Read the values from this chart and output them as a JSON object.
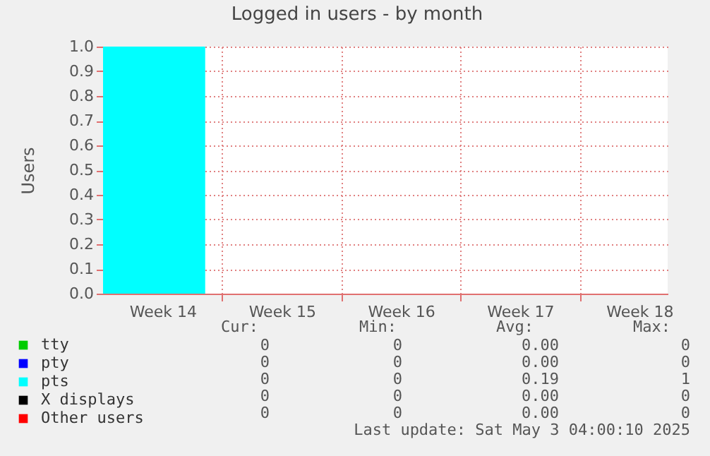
{
  "chart_data": {
    "type": "area",
    "title": "Logged in users - by month",
    "ylabel": "Users",
    "x": [
      "2025-03-31",
      "2025-04-06",
      "2025-04-06",
      "2025-05-03T04:00"
    ],
    "series": [
      {
        "name": "tty",
        "color": "#00cc00",
        "values": [
          null,
          null,
          null,
          null
        ]
      },
      {
        "name": "pty",
        "color": "#0000ff",
        "values": [
          null,
          null,
          null,
          null
        ]
      },
      {
        "name": "pts",
        "color": "#00ffff",
        "values": [
          1,
          1,
          0,
          0
        ]
      },
      {
        "name": "X displays",
        "color": "#000000",
        "values": [
          null,
          null,
          null,
          null
        ]
      },
      {
        "name": "Other users",
        "color": "#ff0000",
        "values": [
          null,
          null,
          null,
          null
        ]
      }
    ],
    "xlim": [
      "2025-03-31",
      "2025-05-03T04:00"
    ],
    "xticks": [
      {
        "value": "2025-04-03T12:00",
        "label": "Week 14"
      },
      {
        "value": "2025-04-07",
        "label": null
      },
      {
        "value": "2025-04-10T12:00",
        "label": "Week 15"
      },
      {
        "value": "2025-04-14",
        "label": null
      },
      {
        "value": "2025-04-17T12:00",
        "label": "Week 16"
      },
      {
        "value": "2025-04-21",
        "label": null
      },
      {
        "value": "2025-04-24T12:00",
        "label": "Week 17"
      },
      {
        "value": "2025-04-28",
        "label": null
      },
      {
        "value": "2025-05-01T12:00",
        "label": "Week 18"
      }
    ],
    "ylim": [
      0,
      1
    ],
    "yticks": [
      {
        "value": 0,
        "label": "0.0"
      },
      {
        "value": 0.1,
        "label": "0.1"
      },
      {
        "value": 0.2,
        "label": "0.2"
      },
      {
        "value": 0.3,
        "label": "0.3"
      },
      {
        "value": 0.4,
        "label": "0.4"
      },
      {
        "value": 0.5,
        "label": "0.5"
      },
      {
        "value": 0.6,
        "label": "0.6"
      },
      {
        "value": 0.7,
        "label": "0.7"
      },
      {
        "value": 0.8,
        "label": "0.8"
      },
      {
        "value": 0.9,
        "label": "0.9"
      },
      {
        "value": 1,
        "label": "1.0"
      }
    ],
    "grid": true,
    "legend": "bottom",
    "annotations": [
      "Cur:",
      "Min:",
      "Avg:",
      "Max:",
      "0",
      "0",
      "0.00",
      "0",
      "0",
      "0",
      "0.00",
      "0",
      "0",
      "0",
      "0.19",
      "1",
      "0",
      "0",
      "0.00",
      "0",
      "0",
      "0",
      "0.00",
      "0",
      "Last update: Sat May  3 04:00:10 2025"
    ]
  }
}
